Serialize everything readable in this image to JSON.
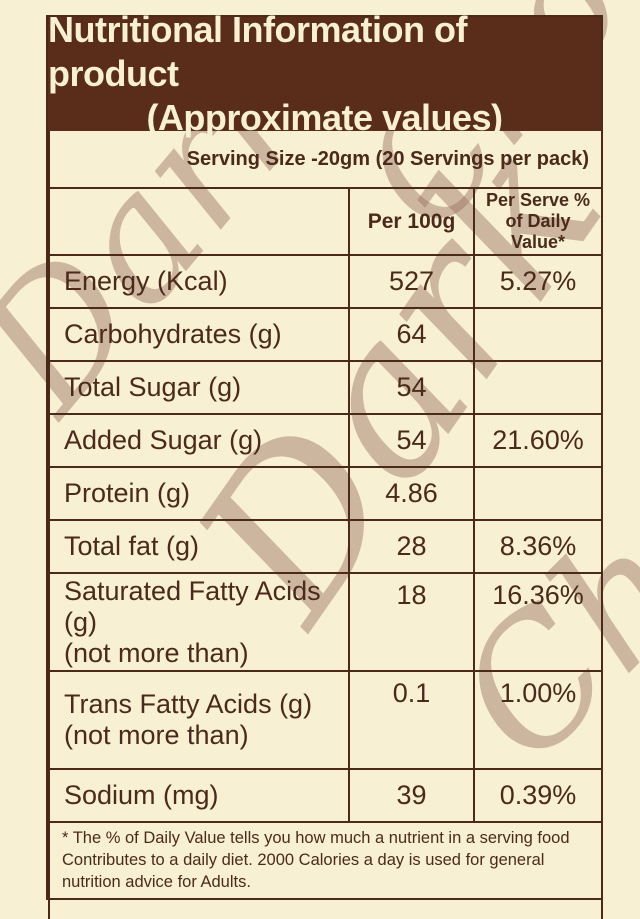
{
  "title_line1": "Nutritional Information of product",
  "title_line2": "(Approximate values)",
  "serving": "Serving Size  -20gm  (20 Servings per pack)",
  "columns": {
    "per100": "Per 100g",
    "perServe": "Per Serve % of Daily Value*"
  },
  "rows": [
    {
      "label": "Energy (Kcal)",
      "per100": "527",
      "dv": "5.27%"
    },
    {
      "label": "Carbohydrates (g)",
      "per100": "64",
      "dv": ""
    },
    {
      "label": "Total Sugar (g)",
      "per100": "54",
      "dv": ""
    },
    {
      "label": "Added Sugar (g)",
      "per100": "54",
      "dv": "21.60%"
    },
    {
      "label": "Protein (g)",
      "per100": "4.86",
      "dv": ""
    },
    {
      "label": "Total fat (g)",
      "per100": "28",
      "dv": "8.36%"
    },
    {
      "label": "Saturated Fatty Acids (g)",
      "sublabel": "(not more than)",
      "per100": "18",
      "dv": "16.36%"
    },
    {
      "label": "Trans Fatty Acids (g)",
      "sublabel": "(not more than)",
      "per100": "0.1",
      "dv": "1.00%"
    },
    {
      "label": "Sodium (mg)",
      "per100": "39",
      "dv": "0.39%"
    }
  ],
  "footnote": "* The % of Daily Value tells you how much a nutrient in a serving food Contributes to a daily diet. 2000 Calories a day is used for general nutrition advice for Adults.",
  "watermark": [
    "Dark",
    "Dark",
    "Choc",
    "Choc"
  ]
}
